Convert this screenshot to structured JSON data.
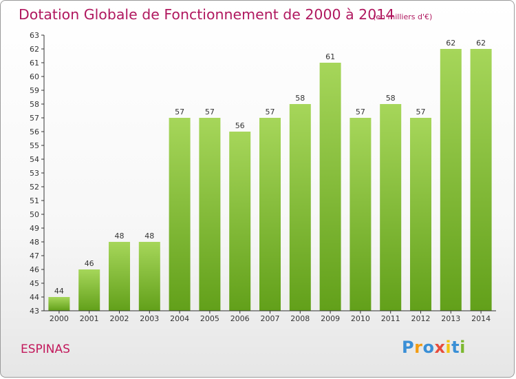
{
  "title": "Dotation Globale de Fonctionnement de 2000 à 2014",
  "subtitle": "(en milliers d'€)",
  "commune": "ESPINAS",
  "brand": {
    "name": "Proxiti",
    "letters": [
      "P",
      "r",
      "o",
      "x",
      "i",
      "t",
      "i"
    ],
    "colors": [
      "#3a8fd6",
      "#f39c12",
      "#3a8fd6",
      "#e74c3c",
      "#f1c40f",
      "#3a8fd6",
      "#7cb82f"
    ]
  },
  "colors": {
    "bar_light": "#a6d65a",
    "bar_dark": "#62a01a",
    "title": "#b0185f",
    "axis": "#333333"
  },
  "chart_data": {
    "type": "bar",
    "title": "Dotation Globale de Fonctionnement de 2000 à 2014",
    "subtitle": "(en milliers d'€)",
    "xlabel": "",
    "ylabel": "",
    "categories": [
      "2000",
      "2001",
      "2002",
      "2003",
      "2004",
      "2005",
      "2006",
      "2007",
      "2008",
      "2009",
      "2010",
      "2011",
      "2012",
      "2013",
      "2014"
    ],
    "values": [
      44,
      46,
      48,
      48,
      57,
      57,
      56,
      57,
      58,
      61,
      57,
      58,
      57,
      62,
      62
    ],
    "ylim": [
      43,
      63
    ],
    "yticks": [
      43,
      44,
      45,
      46,
      47,
      48,
      49,
      50,
      51,
      52,
      53,
      54,
      55,
      56,
      57,
      58,
      59,
      60,
      61,
      62,
      63
    ],
    "grid": false,
    "legend": "none"
  }
}
